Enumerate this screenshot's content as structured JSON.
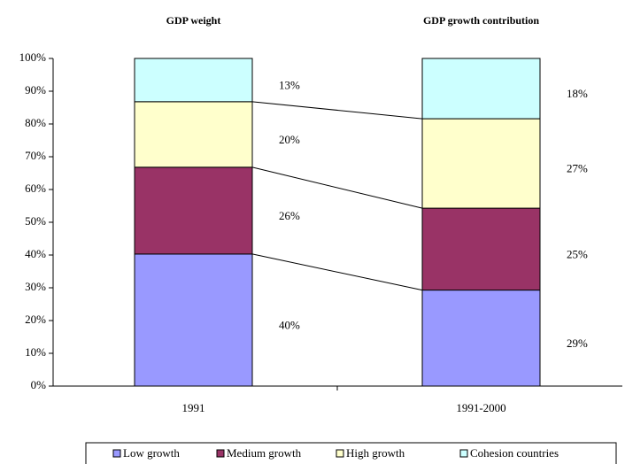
{
  "chart_data": {
    "type": "stacked_bar",
    "panel_titles": [
      "GDP weight",
      "GDP growth contribution"
    ],
    "categories": [
      "1991",
      "1991-2000"
    ],
    "series": [
      {
        "name": "Low growth",
        "color": "#9999ff",
        "values": [
          40.3,
          29.3
        ],
        "value_labels": [
          "40%",
          "29%"
        ]
      },
      {
        "name": "Medium growth",
        "color": "#993366",
        "values": [
          26.5,
          25
        ],
        "value_labels": [
          "26%",
          "25%"
        ]
      },
      {
        "name": "High growth",
        "color": "#ffffcc",
        "values": [
          20,
          27.3
        ],
        "value_labels": [
          "20%",
          "27%"
        ]
      },
      {
        "name": "Cohesion countries",
        "color": "#ccffff",
        "values": [
          13.2,
          18.4
        ],
        "value_labels": [
          "13%",
          "18%"
        ]
      }
    ],
    "ylim": [
      0,
      100
    ],
    "yticks": [
      {
        "value": 0,
        "label": "0%"
      },
      {
        "value": 10,
        "label": "10%"
      },
      {
        "value": 20,
        "label": "20%"
      },
      {
        "value": 30,
        "label": "30%"
      },
      {
        "value": 40,
        "label": "40%"
      },
      {
        "value": 50,
        "label": "50%"
      },
      {
        "value": 60,
        "label": "60%"
      },
      {
        "value": 70,
        "label": "70%"
      },
      {
        "value": 80,
        "label": "80%"
      },
      {
        "value": 90,
        "label": "90%"
      },
      {
        "value": 100,
        "label": "100%"
      }
    ],
    "legend": "bottom"
  }
}
